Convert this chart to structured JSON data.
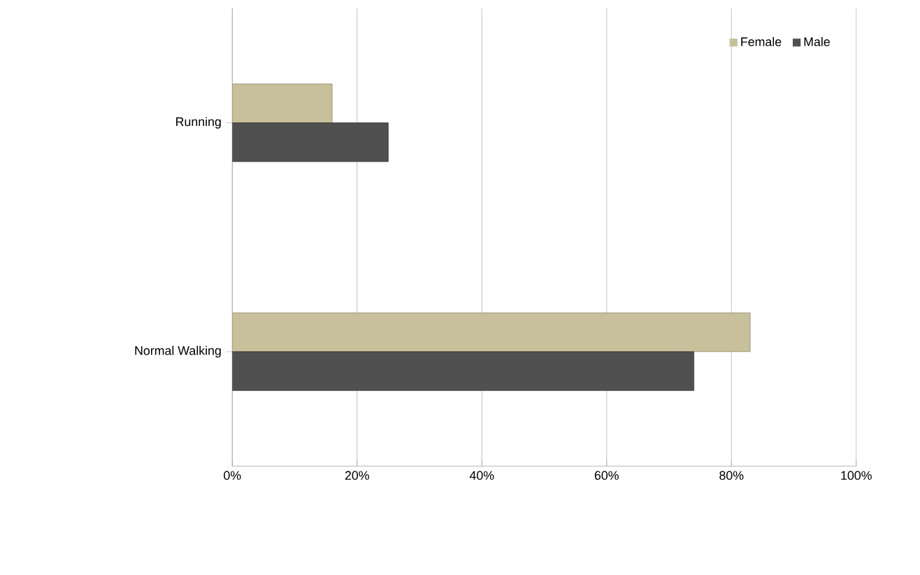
{
  "chart_data": {
    "type": "bar",
    "orientation": "horizontal",
    "categories": [
      "Running",
      "Normal Walking"
    ],
    "series": [
      {
        "name": "Female",
        "color": "#c8c09a",
        "values": [
          16,
          83
        ]
      },
      {
        "name": "Male",
        "color": "#505050",
        "values": [
          25,
          74
        ]
      }
    ],
    "xlim": [
      0,
      100
    ],
    "xticks": [
      {
        "value": 0,
        "label": "0%"
      },
      {
        "value": 20,
        "label": "20%"
      },
      {
        "value": 40,
        "label": "40%"
      },
      {
        "value": 60,
        "label": "60%"
      },
      {
        "value": 80,
        "label": "80%"
      },
      {
        "value": 100,
        "label": "100%"
      }
    ],
    "grid": "x",
    "legend": "top right"
  }
}
